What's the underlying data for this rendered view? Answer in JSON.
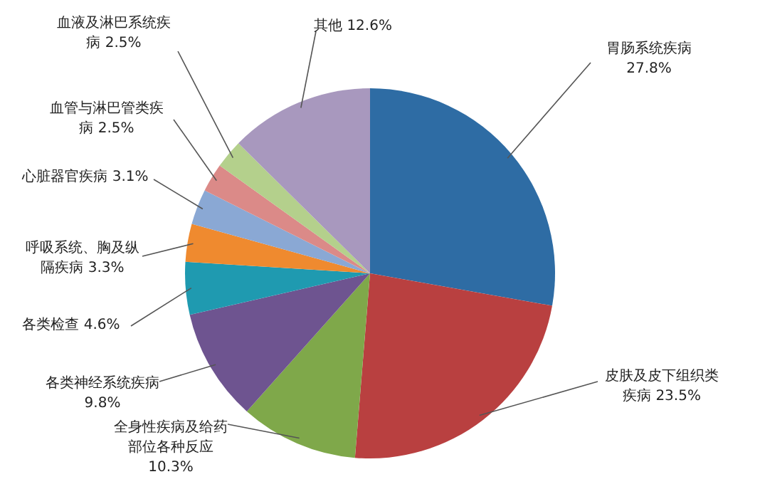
{
  "chart_data": {
    "type": "pie",
    "categories": [
      "胃肠系统疾病",
      "皮肤及皮下组织类疾病",
      "全身性疾病及给药部位各种反应",
      "各类神经系统疾病",
      "各类检查",
      "呼吸系统、胸及纵隔疾病",
      "心脏器官疾病",
      "血管与淋巴管类疾病",
      "血液及淋巴系统疾病",
      "其他"
    ],
    "values": [
      27.8,
      23.5,
      10.3,
      9.8,
      4.6,
      3.3,
      3.1,
      2.5,
      2.5,
      12.6
    ],
    "value_labels": [
      "27.8%",
      "23.5%",
      "10.3%",
      "9.8%",
      "4.6%",
      "3.3%",
      "3.1%",
      "2.5%",
      "2.5%",
      "12.6%"
    ],
    "colors": [
      "#2e6ca4",
      "#b94040",
      "#7fa84a",
      "#6e5490",
      "#1f9ab0",
      "#ef8a2f",
      "#8aa8d4",
      "#db8a88",
      "#b4d08c",
      "#a898be"
    ]
  }
}
